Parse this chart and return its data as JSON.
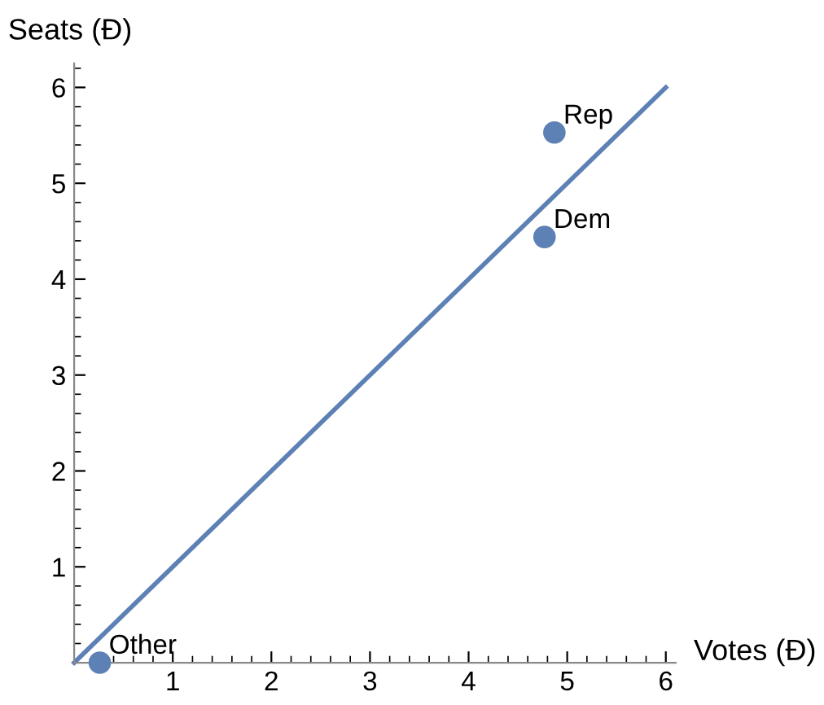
{
  "chart_data": {
    "type": "scatter",
    "xlabel": "Votes (Đ)",
    "ylabel": "Seats (Đ)",
    "xlim": [
      0,
      6.1
    ],
    "ylim": [
      0,
      6.25
    ],
    "xticks": [
      1,
      2,
      3,
      4,
      5,
      6
    ],
    "yticks": [
      1,
      2,
      3,
      4,
      5,
      6
    ],
    "grid": false,
    "legend": false,
    "series": [
      {
        "type": "line",
        "color": "#5e81b5",
        "x": [
          0,
          6
        ],
        "values": [
          0,
          6
        ],
        "line_style": "solid",
        "marker": "none"
      },
      {
        "color": "#5e81b5",
        "marker": "circle",
        "x": [
          0.26,
          4.77,
          4.87
        ],
        "values": [
          0,
          4.44,
          5.53
        ]
      }
    ],
    "annotations": [
      {
        "text": "Other",
        "x": 0.26,
        "y": 0
      },
      {
        "text": "Dem",
        "x": 4.77,
        "y": 4.44
      },
      {
        "text": "Rep",
        "x": 4.87,
        "y": 5.53
      }
    ]
  }
}
